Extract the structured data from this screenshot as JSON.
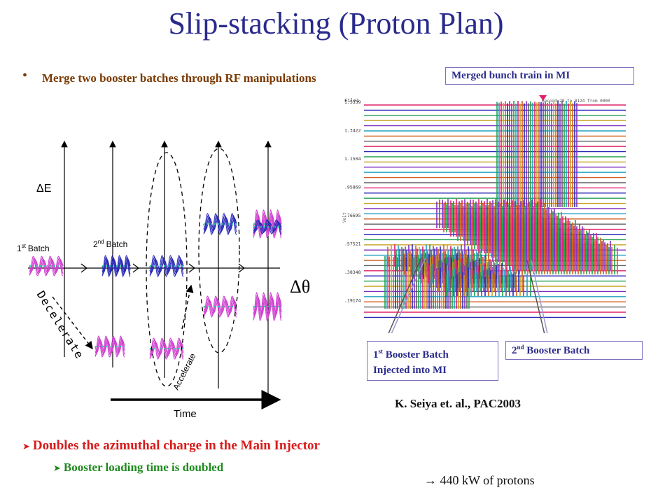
{
  "title": "Slip-stacking (Proton Plan)",
  "bullet": {
    "marker": "•",
    "text": "Merge two booster batches through RF manipulations"
  },
  "diagram": {
    "delta_e": "ΔE",
    "delta_theta": "Δθ",
    "first_batch": {
      "n": "1",
      "sup": "st",
      "word": "Batch"
    },
    "second_batch": {
      "n": "2",
      "sup": "nd",
      "word": "Batch"
    },
    "decelerate": "Decelerate",
    "accelerate": "Accelerate",
    "time": "Time"
  },
  "callouts": {
    "merged": "Merged bunch train in MI",
    "first": {
      "n": "1",
      "sup": "st",
      "rest": "Booster Batch",
      "line2": "Injected into MI"
    },
    "second": {
      "n": "2",
      "sup": "nd",
      "rest": "Booster Batch"
    }
  },
  "mi_plot": {
    "header_left": "File1",
    "header_right": "Record=29 to 8124 from 0000",
    "y_labels": [
      "1.5339",
      "1.3422",
      "1.1504",
      ".95869",
      ".76695",
      ".57521",
      ".38348",
      ".19174"
    ],
    "axis_label": "Volt"
  },
  "citation": "K. Seiya et. al., PAC2003",
  "points": {
    "main": "Doubles the azimuthal charge in the Main Injector",
    "sub": "Booster loading time is doubled",
    "power": "→ 440 kW of protons"
  },
  "icons": {
    "bullet_arrow": "arrow-bullet-icon"
  },
  "colors": {
    "title": "#2a2a8c",
    "bullet_text": "#7a3a00",
    "main_point": "#d81c1c",
    "sub_point": "#1e8a1e",
    "bunch_pink": "#d040d0",
    "bunch_blue": "#2a2ab8"
  }
}
